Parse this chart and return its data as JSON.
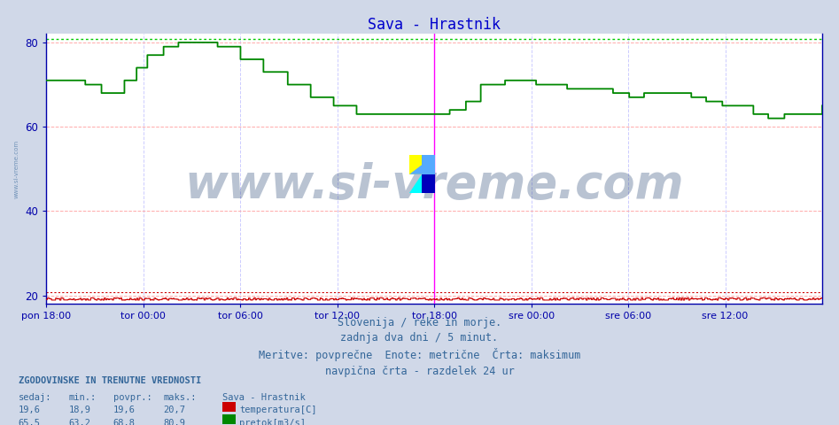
{
  "title": "Sava - Hrastnik",
  "title_color": "#0000cc",
  "bg_color": "#d0d8e8",
  "plot_bg_color": "#ffffff",
  "x_labels": [
    "pon 18:00",
    "tor 00:00",
    "tor 06:00",
    "tor 12:00",
    "tor 18:00",
    "sre 00:00",
    "sre 06:00",
    "sre 12:00"
  ],
  "x_ticks_norm": [
    0.0,
    0.125,
    0.25,
    0.375,
    0.5,
    0.625,
    0.75,
    0.875
  ],
  "ymin": 18.0,
  "ymax": 82.0,
  "yticks": [
    20,
    40,
    60,
    80
  ],
  "grid_color_major": "#ffaaaa",
  "grid_color_minor": "#ccccff",
  "temp_color": "#cc0000",
  "flow_color": "#008800",
  "max_flow_line_color": "#00cc00",
  "max_temp_line_color": "#cc0000",
  "vertical_line_color": "#ff00ff",
  "vertical_line_x": 0.5,
  "watermark": "www.si-vreme.com",
  "watermark_color": "#1a3a6b",
  "watermark_alpha": 0.3,
  "watermark_fontsize": 38,
  "subtitle_lines": [
    "Slovenija / reke in morje.",
    "zadnja dva dni / 5 minut.",
    "Meritve: povprečne  Enote: metrične  Črta: maksimum",
    "navpična črta - razdelek 24 ur"
  ],
  "subtitle_color": "#336699",
  "subtitle_fontsize": 8.5,
  "legend_title": "ZGODOVINSKE IN TRENUTNE VREDNOSTI",
  "legend_headers": [
    "sedaj:",
    "min.:",
    "povpr.:",
    "maks.:",
    "Sava - Hrastnik"
  ],
  "temp_values": [
    "19,6",
    "18,9",
    "19,6",
    "20,7"
  ],
  "flow_values": [
    "65,5",
    "63,2",
    "68,8",
    "80,9"
  ],
  "temp_label": "temperatura[C]",
  "flow_label": "pretok[m3/s]",
  "flow_max": 80.9,
  "temp_max": 20.7,
  "axis_label_color": "#0000aa",
  "spine_color": "#0000aa",
  "legend_color": "#336699",
  "legend_fontsize": 8.0,
  "side_label": "www.si-vreme.com",
  "side_label_color": "#336699",
  "side_label_alpha": 0.6,
  "flow_breakpoints": [
    0,
    0.03,
    0.05,
    0.07,
    0.1,
    0.115,
    0.13,
    0.15,
    0.17,
    0.2,
    0.22,
    0.25,
    0.28,
    0.31,
    0.34,
    0.37,
    0.4,
    0.43,
    0.46,
    0.5,
    0.52,
    0.54,
    0.56,
    0.59,
    0.61,
    0.63,
    0.65,
    0.67,
    0.69,
    0.71,
    0.73,
    0.75,
    0.77,
    0.79,
    0.81,
    0.83,
    0.85,
    0.87,
    0.89,
    0.91,
    0.93,
    0.95,
    1.0
  ],
  "flow_vals": [
    71,
    71,
    70,
    68,
    71,
    74,
    77,
    79,
    80,
    80,
    79,
    76,
    73,
    70,
    67,
    65,
    63,
    63,
    63,
    63,
    64,
    66,
    70,
    71,
    71,
    70,
    70,
    69,
    69,
    69,
    68,
    67,
    68,
    68,
    68,
    67,
    66,
    65,
    65,
    63,
    62,
    63,
    65
  ]
}
